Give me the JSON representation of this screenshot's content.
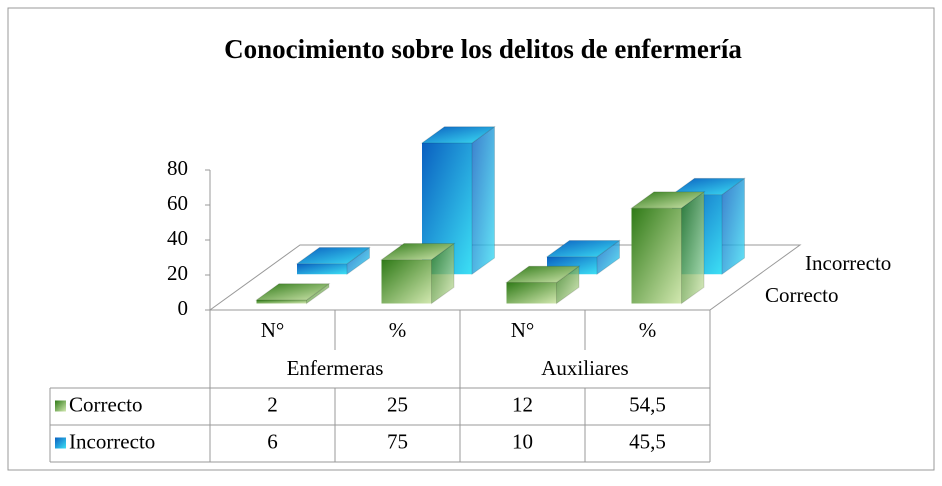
{
  "chart_data": {
    "type": "bar3d",
    "title": "Conocimiento sobre los delitos de enfermería",
    "categories": [
      "N°",
      "%",
      "N°",
      "%"
    ],
    "group_labels": [
      "Enfermeras",
      "Auxiliares"
    ],
    "series": [
      {
        "name": "Correcto",
        "color": "#4e9a2a",
        "values": [
          2,
          25,
          12,
          54.5
        ],
        "value_labels": [
          "2",
          "25",
          "12",
          "54,5"
        ]
      },
      {
        "name": "Incorrecto",
        "color": "#1a8fe0",
        "values": [
          6,
          75,
          10,
          45.5
        ],
        "value_labels": [
          "6",
          "75",
          "10",
          "45,5"
        ]
      }
    ],
    "ylim": [
      0,
      80
    ],
    "yticks": [
      0,
      20,
      40,
      60,
      80
    ]
  }
}
